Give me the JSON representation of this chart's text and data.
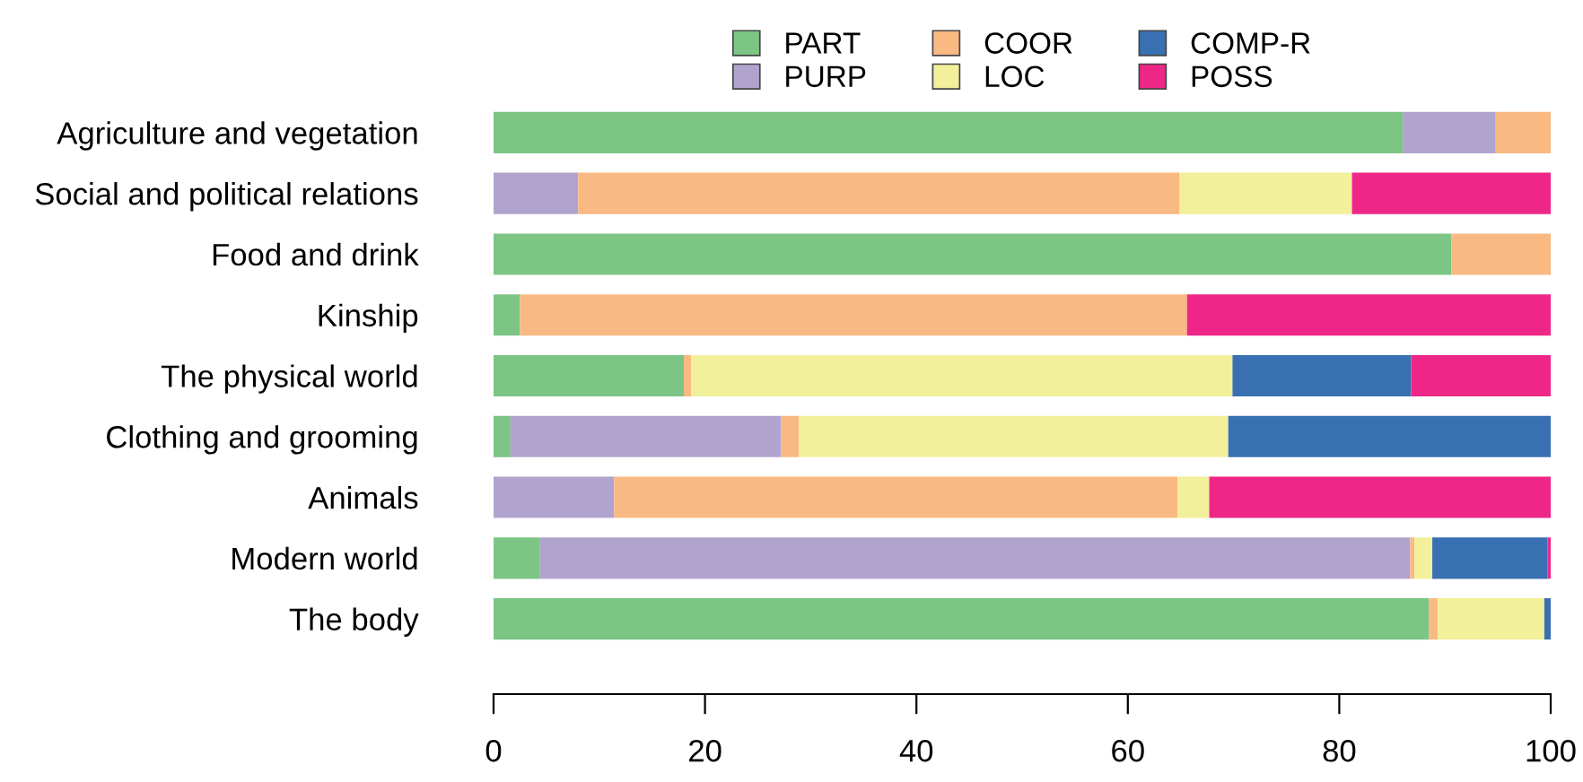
{
  "chart_data": {
    "type": "bar",
    "orientation": "horizontal",
    "stacked": true,
    "categories": [
      "Agriculture and vegetation",
      "Social and political relations",
      "Food and drink",
      "Kinship",
      "The physical world",
      "Clothing and grooming",
      "Animals",
      "Modern world",
      "The body"
    ],
    "series": [
      {
        "name": "PART",
        "color": "#7cc585",
        "values": [
          86.0,
          0,
          90.6,
          2.5,
          18.0,
          1.6,
          0,
          4.4,
          88.5
        ]
      },
      {
        "name": "PURP",
        "color": "#b0a4cf",
        "values": [
          8.8,
          8.0,
          0,
          0,
          0,
          25.6,
          11.4,
          82.3,
          0
        ]
      },
      {
        "name": "COOR",
        "color": "#f9b983",
        "values": [
          5.2,
          56.9,
          9.4,
          63.1,
          0.7,
          1.7,
          53.3,
          0.4,
          0.8
        ]
      },
      {
        "name": "LOC",
        "color": "#f2f09a",
        "values": [
          0,
          16.3,
          0,
          0,
          51.2,
          40.6,
          3.0,
          1.7,
          10.1
        ]
      },
      {
        "name": "COMP-R",
        "color": "#3870b2",
        "values": [
          0,
          0,
          0,
          0,
          16.9,
          30.5,
          0,
          10.9,
          0.6
        ]
      },
      {
        "name": "POSS",
        "color": "#ee2688",
        "values": [
          0,
          18.8,
          0,
          34.4,
          13.2,
          0,
          32.3,
          0.3,
          0
        ]
      }
    ],
    "xlim": [
      0,
      100
    ],
    "xticks": [
      0,
      20,
      40,
      60,
      80,
      100
    ],
    "grid": false,
    "legend": "top"
  }
}
